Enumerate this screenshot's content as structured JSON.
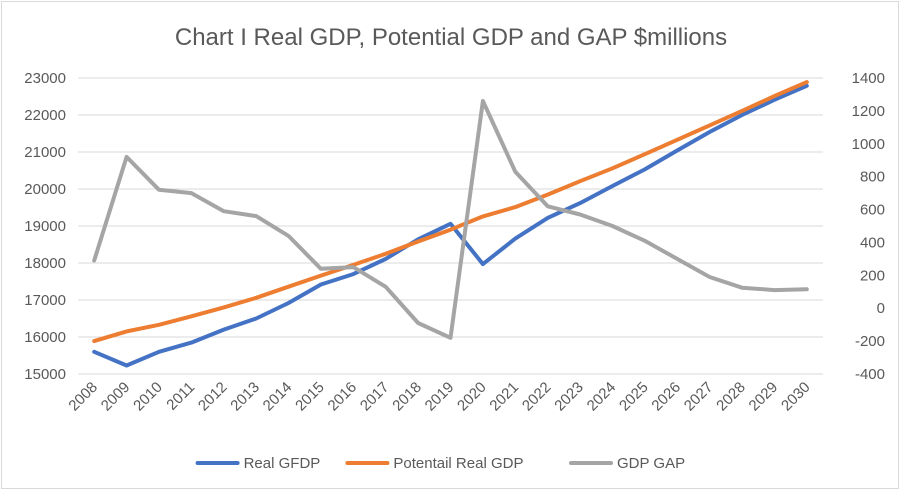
{
  "chart_data": {
    "type": "line",
    "title": "Chart I Real GDP, Potential GDP and GAP $millions",
    "xlabel": "",
    "ylabel": "",
    "y2label": "",
    "categories": [
      "2008",
      "2009",
      "2010",
      "2011",
      "2012",
      "2013",
      "2014",
      "2015",
      "2016",
      "2017",
      "2018",
      "2019",
      "2020",
      "2021",
      "2022",
      "2023",
      "2024",
      "2025",
      "2026",
      "2027",
      "2028",
      "2029",
      "2030"
    ],
    "ylim": [
      15000,
      23000
    ],
    "y_ticks": [
      15000,
      16000,
      17000,
      18000,
      19000,
      20000,
      21000,
      22000,
      23000
    ],
    "y2lim": [
      -400,
      1400
    ],
    "y2_ticks": [
      -400,
      -200,
      0,
      200,
      400,
      600,
      800,
      1000,
      1200,
      1400
    ],
    "grid": true,
    "legend_position": "bottom",
    "series": [
      {
        "name": "Real GFDP",
        "axis": "left",
        "color": "#4472c4",
        "values": [
          15600,
          15230,
          15600,
          15850,
          16200,
          16500,
          16920,
          17420,
          17700,
          18110,
          18640,
          19060,
          17970,
          18660,
          19220,
          19620,
          20080,
          20530,
          21040,
          21540,
          22000,
          22410,
          22790
        ]
      },
      {
        "name": "Potentail Real GDP",
        "axis": "left",
        "color": "#ed7d31",
        "values": [
          15890,
          16150,
          16330,
          16560,
          16800,
          17060,
          17360,
          17660,
          17950,
          18250,
          18580,
          18900,
          19260,
          19510,
          19850,
          20210,
          20560,
          20940,
          21330,
          21720,
          22110,
          22510,
          22890
        ]
      },
      {
        "name": "GDP GAP",
        "axis": "right",
        "color": "#a5a5a5",
        "values": [
          290,
          920,
          720,
          700,
          590,
          560,
          440,
          240,
          250,
          130,
          -90,
          -180,
          1260,
          830,
          620,
          570,
          500,
          410,
          300,
          190,
          125,
          110,
          115
        ]
      }
    ]
  }
}
